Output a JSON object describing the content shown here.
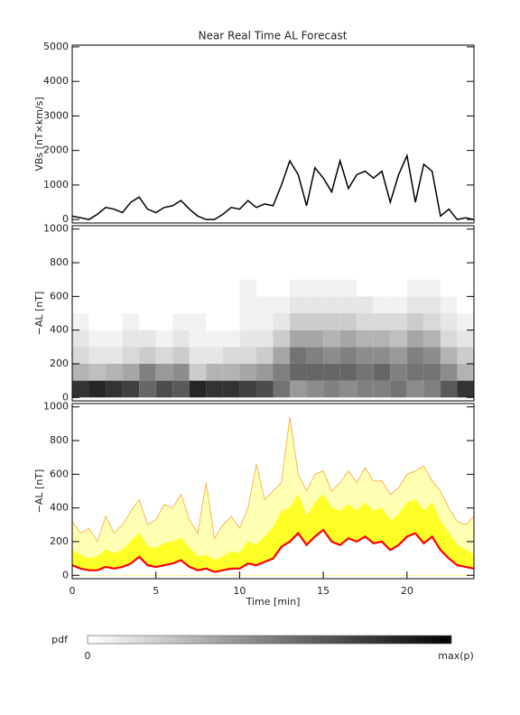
{
  "chart_data": [
    {
      "type": "line",
      "title": "Near Real Time AL Forecast",
      "ylabel": "VBs [nT×km/s]",
      "x": [
        0,
        0.5,
        1,
        1.5,
        2,
        2.5,
        3,
        3.5,
        4,
        4.5,
        5,
        5.5,
        6,
        6.5,
        7,
        7.5,
        8,
        8.5,
        9,
        9.5,
        10,
        10.5,
        11,
        11.5,
        12,
        12.5,
        13,
        13.5,
        14,
        14.5,
        15,
        15.5,
        16,
        16.5,
        17,
        17.5,
        18,
        18.5,
        19,
        19.5,
        20,
        20.5,
        21,
        21.5,
        22,
        22.5,
        23,
        23.5,
        24
      ],
      "values": [
        100,
        50,
        0,
        150,
        350,
        300,
        200,
        500,
        650,
        300,
        200,
        350,
        400,
        550,
        300,
        100,
        0,
        0,
        150,
        350,
        300,
        550,
        350,
        450,
        400,
        1000,
        1700,
        1300,
        400,
        1500,
        1200,
        800,
        1700,
        900,
        1300,
        1400,
        1200,
        1400,
        500,
        1300,
        1850,
        500,
        1600,
        1400,
        100,
        300,
        0,
        50,
        0
      ],
      "color": "#000000",
      "xlim": [
        0,
        24
      ],
      "ylim": [
        -100,
        5050
      ],
      "yticks": [
        0,
        1000,
        2000,
        3000,
        4000,
        5000
      ]
    },
    {
      "type": "heatmap",
      "ylabel": "−AL [nT]",
      "x_bins": [
        0,
        1,
        2,
        3,
        4,
        5,
        6,
        7,
        8,
        9,
        10,
        11,
        12,
        13,
        14,
        15,
        16,
        17,
        18,
        19,
        20,
        21,
        22,
        23,
        24
      ],
      "y_bins": [
        0,
        100,
        200,
        300,
        400,
        500,
        600,
        700
      ],
      "values": [
        [
          0.8,
          0.3,
          0.15,
          0.1,
          0.05,
          0,
          0
        ],
        [
          0.85,
          0.25,
          0.1,
          0.05,
          0,
          0,
          0
        ],
        [
          0.8,
          0.3,
          0.1,
          0.05,
          0,
          0,
          0
        ],
        [
          0.75,
          0.35,
          0.15,
          0.1,
          0.05,
          0,
          0
        ],
        [
          0.6,
          0.5,
          0.2,
          0.1,
          0,
          0,
          0
        ],
        [
          0.7,
          0.4,
          0.15,
          0.05,
          0,
          0,
          0
        ],
        [
          0.65,
          0.45,
          0.2,
          0.1,
          0.05,
          0,
          0
        ],
        [
          0.85,
          0.2,
          0.1,
          0.05,
          0.05,
          0,
          0
        ],
        [
          0.8,
          0.3,
          0.1,
          0.05,
          0,
          0,
          0
        ],
        [
          0.8,
          0.3,
          0.15,
          0.05,
          0,
          0,
          0
        ],
        [
          0.75,
          0.35,
          0.15,
          0.1,
          0.05,
          0.05,
          0.05
        ],
        [
          0.7,
          0.4,
          0.2,
          0.1,
          0.05,
          0.05,
          0
        ],
        [
          0.55,
          0.5,
          0.35,
          0.2,
          0.1,
          0.05,
          0
        ],
        [
          0.4,
          0.6,
          0.55,
          0.35,
          0.2,
          0.1,
          0.05
        ],
        [
          0.45,
          0.6,
          0.5,
          0.35,
          0.2,
          0.1,
          0.05
        ],
        [
          0.5,
          0.6,
          0.45,
          0.3,
          0.2,
          0.1,
          0.05
        ],
        [
          0.45,
          0.6,
          0.5,
          0.35,
          0.2,
          0.1,
          0.05
        ],
        [
          0.5,
          0.55,
          0.45,
          0.3,
          0.15,
          0.1,
          0
        ],
        [
          0.5,
          0.6,
          0.45,
          0.3,
          0.15,
          0.05,
          0
        ],
        [
          0.55,
          0.5,
          0.4,
          0.25,
          0.15,
          0.05,
          0
        ],
        [
          0.45,
          0.55,
          0.5,
          0.35,
          0.2,
          0.1,
          0.05
        ],
        [
          0.5,
          0.55,
          0.45,
          0.3,
          0.15,
          0.1,
          0.05
        ],
        [
          0.65,
          0.45,
          0.3,
          0.15,
          0.1,
          0.05,
          0
        ],
        [
          0.8,
          0.3,
          0.2,
          0.1,
          0.05,
          0,
          0
        ]
      ],
      "xlim": [
        0,
        24
      ],
      "ylim": [
        -20,
        1020
      ],
      "yticks": [
        0,
        200,
        400,
        600,
        800,
        1000
      ]
    },
    {
      "type": "area",
      "ylabel": "−AL [nT]",
      "xlabel": "Time [min]",
      "x": [
        0,
        0.5,
        1,
        1.5,
        2,
        2.5,
        3,
        3.5,
        4,
        4.5,
        5,
        5.5,
        6,
        6.5,
        7,
        7.5,
        8,
        8.5,
        9,
        9.5,
        10,
        10.5,
        11,
        11.5,
        12,
        12.5,
        13,
        13.5,
        14,
        14.5,
        15,
        15.5,
        16,
        16.5,
        17,
        17.5,
        18,
        18.5,
        19,
        19.5,
        20,
        20.5,
        21,
        21.5,
        22,
        22.5,
        23,
        23.5,
        24
      ],
      "series": [
        {
          "color": "#ffffb4",
          "edge": "#f5a53c",
          "values": [
            320,
            250,
            280,
            200,
            350,
            250,
            300,
            380,
            450,
            300,
            330,
            420,
            400,
            480,
            330,
            250,
            550,
            220,
            300,
            350,
            280,
            400,
            660,
            450,
            500,
            550,
            940,
            600,
            500,
            600,
            620,
            500,
            550,
            620,
            550,
            640,
            560,
            560,
            480,
            520,
            600,
            620,
            650,
            560,
            500,
            400,
            320,
            300,
            350
          ]
        },
        {
          "color": "#ffff28",
          "edge": "#ffff28",
          "values": [
            150,
            120,
            100,
            110,
            150,
            130,
            150,
            200,
            250,
            170,
            160,
            190,
            200,
            220,
            160,
            110,
            120,
            90,
            110,
            140,
            130,
            200,
            180,
            230,
            280,
            380,
            400,
            480,
            350,
            430,
            480,
            400,
            380,
            420,
            380,
            430,
            380,
            400,
            320,
            360,
            430,
            450,
            380,
            430,
            320,
            250,
            180,
            150,
            120
          ]
        },
        {
          "color": "#ff0000",
          "values": [
            60,
            40,
            30,
            30,
            50,
            40,
            50,
            70,
            110,
            60,
            50,
            60,
            70,
            90,
            50,
            30,
            40,
            20,
            30,
            40,
            40,
            70,
            60,
            80,
            100,
            170,
            200,
            250,
            180,
            230,
            270,
            200,
            180,
            220,
            200,
            230,
            190,
            200,
            150,
            180,
            230,
            250,
            190,
            230,
            150,
            100,
            60,
            50,
            40
          ]
        }
      ],
      "xlim": [
        0,
        24
      ],
      "ylim": [
        -20,
        1020
      ],
      "yticks": [
        0,
        200,
        400,
        600,
        800,
        1000
      ],
      "xticks": [
        0,
        5,
        10,
        15,
        20
      ]
    }
  ],
  "colorbar": {
    "label": "pdf",
    "min_label": "0",
    "max_label": "max(p)",
    "colors": [
      "#ffffff",
      "#000000"
    ]
  }
}
